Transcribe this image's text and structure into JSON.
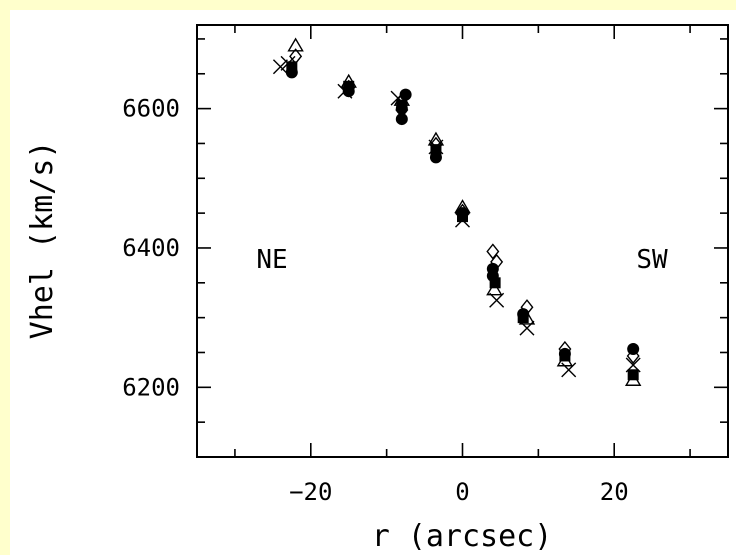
{
  "chart_data": {
    "type": "scatter",
    "title": "",
    "xlabel": "r (arcsec)",
    "ylabel": "Vhel (km/s)",
    "xlim": [
      -35,
      35
    ],
    "ylim": [
      6100,
      6720
    ],
    "x_ticks": [
      -20,
      0,
      20
    ],
    "y_ticks": [
      6200,
      6400,
      6600
    ],
    "x_tick_labels": [
      "−20",
      "0",
      "20"
    ],
    "y_tick_labels": [
      "6200",
      "6400",
      "6600"
    ],
    "grid": false,
    "annotations": [
      "NE",
      "SW"
    ],
    "colors": {
      "background": "#FFFFCC",
      "panel": "#FFFFFF",
      "ink": "#000000"
    },
    "series": [
      {
        "marker": "filled-circle",
        "points": [
          {
            "x": -22.5,
            "y": 6652
          },
          {
            "x": -15,
            "y": 6625
          },
          {
            "x": -8,
            "y": 6600
          },
          {
            "x": -8,
            "y": 6585
          },
          {
            "x": -7.5,
            "y": 6620
          },
          {
            "x": -3.5,
            "y": 6530
          },
          {
            "x": 0,
            "y": 6450
          },
          {
            "x": 4,
            "y": 6360
          },
          {
            "x": 4,
            "y": 6370
          },
          {
            "x": 8,
            "y": 6305
          },
          {
            "x": 13.5,
            "y": 6248
          },
          {
            "x": 22.5,
            "y": 6255
          }
        ]
      },
      {
        "marker": "filled-square",
        "points": [
          {
            "x": -22.5,
            "y": 6660
          },
          {
            "x": -15,
            "y": 6632
          },
          {
            "x": -8,
            "y": 6605
          },
          {
            "x": -3.5,
            "y": 6540
          },
          {
            "x": 0,
            "y": 6445
          },
          {
            "x": 4.3,
            "y": 6350
          },
          {
            "x": 8,
            "y": 6300
          },
          {
            "x": 13.5,
            "y": 6245
          },
          {
            "x": 22.5,
            "y": 6218
          }
        ]
      },
      {
        "marker": "open-triangle",
        "points": [
          {
            "x": -22,
            "y": 6690
          },
          {
            "x": -15,
            "y": 6638
          },
          {
            "x": -8,
            "y": 6612
          },
          {
            "x": -3.5,
            "y": 6555
          },
          {
            "x": 0,
            "y": 6458
          },
          {
            "x": 4.2,
            "y": 6340
          },
          {
            "x": 8.5,
            "y": 6298
          },
          {
            "x": 13.5,
            "y": 6238
          },
          {
            "x": 22.5,
            "y": 6210
          }
        ]
      },
      {
        "marker": "open-diamond",
        "points": [
          {
            "x": -22,
            "y": 6675
          },
          {
            "x": -15,
            "y": 6630
          },
          {
            "x": -8,
            "y": 6598
          },
          {
            "x": -3.5,
            "y": 6548
          },
          {
            "x": 0,
            "y": 6452
          },
          {
            "x": 4,
            "y": 6395
          },
          {
            "x": 4.5,
            "y": 6380
          },
          {
            "x": 8.5,
            "y": 6315
          },
          {
            "x": 13.5,
            "y": 6255
          },
          {
            "x": 22.5,
            "y": 6245
          }
        ]
      },
      {
        "marker": "cross",
        "points": [
          {
            "x": -24,
            "y": 6660
          },
          {
            "x": -23,
            "y": 6665
          },
          {
            "x": -15.5,
            "y": 6625
          },
          {
            "x": -8.5,
            "y": 6615
          },
          {
            "x": -3.5,
            "y": 6545
          },
          {
            "x": 0,
            "y": 6440
          },
          {
            "x": 4.5,
            "y": 6325
          },
          {
            "x": 8.5,
            "y": 6285
          },
          {
            "x": 14,
            "y": 6225
          },
          {
            "x": 22.5,
            "y": 6232
          }
        ]
      }
    ]
  }
}
